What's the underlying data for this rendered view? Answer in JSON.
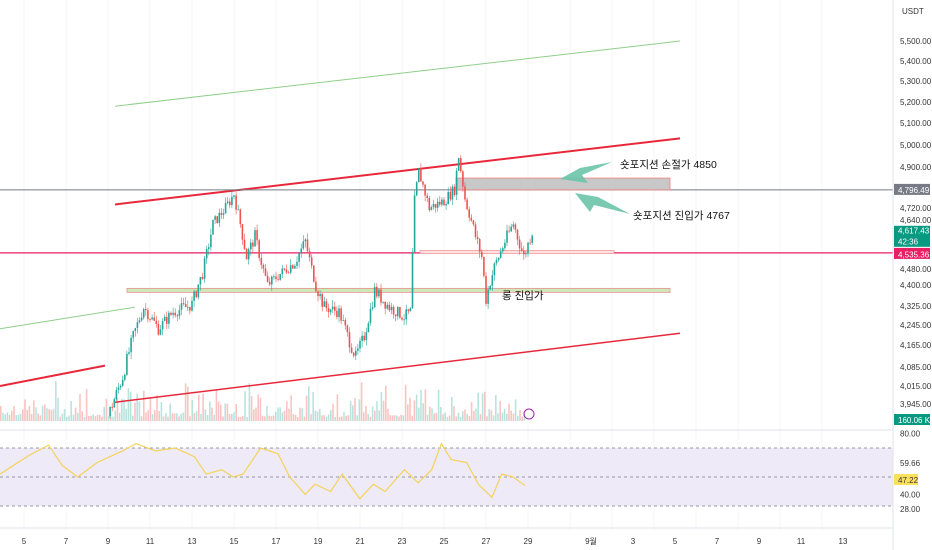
{
  "header": {
    "currency": "USDT"
  },
  "chart_data": {
    "type": "candlestick",
    "price_axis": {
      "ticks": [
        "5,500.00",
        "5,400.00",
        "5,300.00",
        "5,200.00",
        "5,100.00",
        "5,000.00",
        "4,900.00",
        "4,720.00",
        "4,640.00",
        "4,480.00",
        "4,400.00",
        "4,325.00",
        "4,245.00",
        "4,165.00",
        "4,085.00",
        "4,015.00",
        "3,945.00"
      ]
    },
    "x_axis": {
      "ticks": [
        "5",
        "7",
        "9",
        "11",
        "13",
        "15",
        "17",
        "19",
        "21",
        "23",
        "25",
        "27",
        "29",
        "9월",
        "3",
        "5",
        "7",
        "9",
        "11",
        "13"
      ]
    },
    "price_points": [
      [
        9.0,
        3900
      ],
      [
        9.7,
        4050
      ],
      [
        10.2,
        4200
      ],
      [
        10.7,
        4320
      ],
      [
        11.4,
        4230
      ],
      [
        12.1,
        4300
      ],
      [
        13.0,
        4330
      ],
      [
        13.5,
        4450
      ],
      [
        14.0,
        4650
      ],
      [
        14.6,
        4720
      ],
      [
        15.0,
        4780
      ],
      [
        15.3,
        4650
      ],
      [
        15.6,
        4520
      ],
      [
        16.0,
        4600
      ],
      [
        16.6,
        4400
      ],
      [
        17.2,
        4450
      ],
      [
        17.9,
        4500
      ],
      [
        18.4,
        4580
      ],
      [
        18.9,
        4400
      ],
      [
        19.3,
        4320
      ],
      [
        20.0,
        4300
      ],
      [
        20.5,
        4180
      ],
      [
        20.8,
        4120
      ],
      [
        21.2,
        4200
      ],
      [
        21.7,
        4380
      ],
      [
        22.4,
        4320
      ],
      [
        23.1,
        4280
      ],
      [
        23.4,
        4300
      ],
      [
        23.6,
        4750
      ],
      [
        23.8,
        4880
      ],
      [
        24.3,
        4720
      ],
      [
        25.0,
        4750
      ],
      [
        25.5,
        4800
      ],
      [
        25.7,
        4950
      ],
      [
        26.0,
        4760
      ],
      [
        26.5,
        4600
      ],
      [
        26.8,
        4520
      ],
      [
        27.0,
        4350
      ],
      [
        27.4,
        4480
      ],
      [
        27.9,
        4580
      ],
      [
        28.3,
        4650
      ],
      [
        28.8,
        4520
      ],
      [
        29.2,
        4620
      ]
    ],
    "levels": {
      "last_price": "4,617.43",
      "countdown": "42:36",
      "stop_line": "4,796.49",
      "pink_line": "4,535.36",
      "volume": "160.06 K"
    },
    "level_values": {
      "stop_line": 4796.49,
      "pink_line": 4535.36,
      "last_price": 4617.43
    },
    "zones": {
      "stop_zone": [
        4796.49,
        4850
      ],
      "short_entry_zone": [
        4530,
        4545
      ],
      "long_entry_zone": [
        4370,
        4388
      ]
    },
    "annotations": {
      "stop_loss": "숏포지션 손절가 4850",
      "short_entry": "숏포지션 진입가 4767",
      "long_entry": "롱 진입가"
    },
    "rsi": {
      "ticks": [
        "80.00",
        "59.66",
        "40.00",
        "28.00"
      ],
      "value": "47.22",
      "band": [
        30,
        70
      ],
      "points": [
        [
          4,
          52
        ],
        [
          5.5,
          65
        ],
        [
          6.5,
          72
        ],
        [
          7.2,
          58
        ],
        [
          8,
          50
        ],
        [
          9,
          60
        ],
        [
          10.3,
          68
        ],
        [
          11,
          73
        ],
        [
          12,
          68
        ],
        [
          13,
          70
        ],
        [
          14,
          64
        ],
        [
          14.6,
          52
        ],
        [
          15.4,
          55
        ],
        [
          16,
          50
        ],
        [
          16.5,
          52
        ],
        [
          17.4,
          70
        ],
        [
          18.3,
          66
        ],
        [
          18.9,
          50
        ],
        [
          19.7,
          38
        ],
        [
          20.2,
          45
        ],
        [
          21,
          40
        ],
        [
          21.6,
          52
        ],
        [
          22.5,
          35
        ],
        [
          23.2,
          45
        ],
        [
          23.8,
          40
        ],
        [
          24.8,
          55
        ],
        [
          25.5,
          46
        ],
        [
          26.2,
          55
        ],
        [
          26.7,
          73
        ],
        [
          27.2,
          62
        ],
        [
          28,
          60
        ],
        [
          28.6,
          45
        ],
        [
          29.3,
          36
        ],
        [
          29.8,
          52
        ],
        [
          30.4,
          50
        ],
        [
          31,
          44
        ]
      ],
      "colors": {
        "line": "#f3d35a",
        "band": "#efeaf7"
      }
    },
    "colors": {
      "up": "#26a69a",
      "down": "#ef5350",
      "trend_red": "#e8283a",
      "trend_green": "#8fcf8a",
      "stop_line": "#787b86",
      "pink_line": "#e91e63",
      "zone_gray": "#c8c8c8",
      "arrow": "#6cc4a8"
    }
  }
}
